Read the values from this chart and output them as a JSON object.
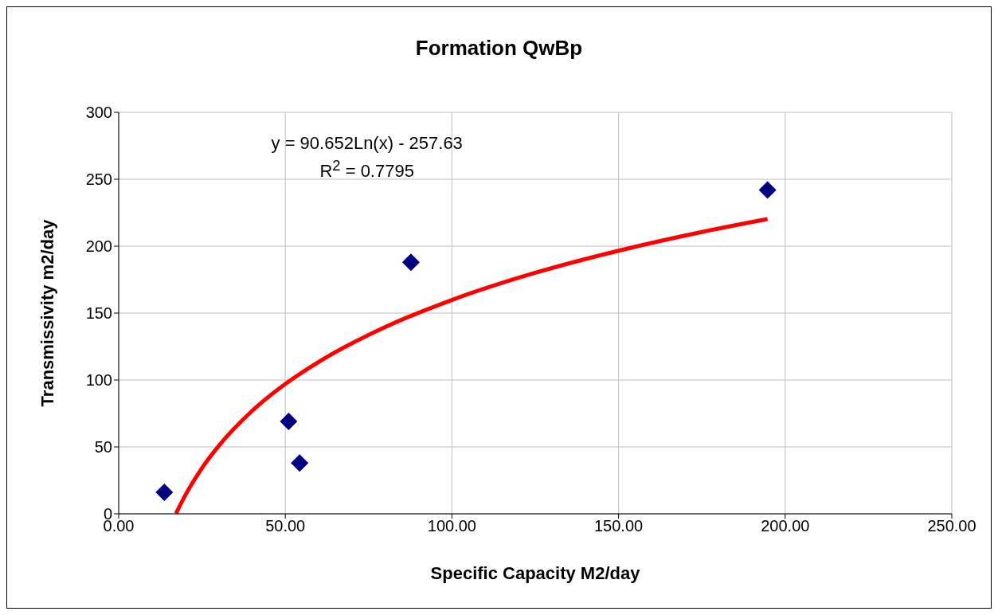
{
  "chart_data": {
    "type": "scatter",
    "title": "Formation QwBp",
    "xlabel": "Specific Capacity M2/day",
    "ylabel": "Transmissivity m2/day",
    "annotations": [
      "y = 90.652Ln(x) - 257.63",
      "R$^{2}$ = 0.7795"
    ],
    "xlim": [
      0,
      250
    ],
    "xticks": [
      {
        "value": 0,
        "label": "0.00"
      },
      {
        "value": 50,
        "label": "50.00"
      },
      {
        "value": 100,
        "label": "100.00"
      },
      {
        "value": 150,
        "label": "150.00"
      },
      {
        "value": 200,
        "label": "200.00"
      },
      {
        "value": 250,
        "label": "250.00"
      }
    ],
    "ylim": [
      0,
      300
    ],
    "yticks": [
      0,
      50,
      100,
      150,
      200,
      250,
      300
    ],
    "grid": true,
    "marker": "diamond",
    "series": [
      {
        "color": "#000080",
        "x": [
          13.7,
          51,
          54.3,
          87.7,
          194.7
        ],
        "values": [
          16,
          69,
          38,
          188,
          242
        ]
      },
      {
        "type": "line",
        "color": "#ff0000",
        "marker": "none",
        "x": [
          17.2,
          20,
          25,
          30,
          40,
          50,
          60,
          80,
          100,
          125,
          150,
          175,
          194.7
        ],
        "values": [
          0.2,
          13.9,
          34.2,
          50.7,
          76.8,
          97.0,
          113.5,
          139.6,
          159.8,
          180.1,
          196.6,
          210.6,
          220.2
        ]
      }
    ]
  }
}
